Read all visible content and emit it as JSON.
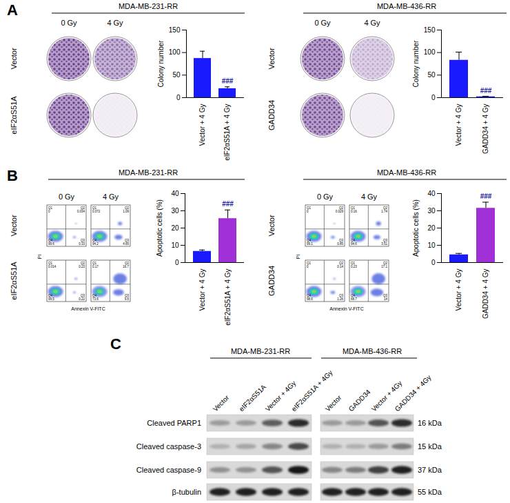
{
  "chart_data": [
    {
      "type": "bar",
      "categories": [
        "Vector + 4 Gy",
        "eIF2αS51A + 4 Gy"
      ],
      "values": [
        87,
        20
      ],
      "errors": [
        16,
        4
      ],
      "colors": [
        "#1a1aff",
        "#1a1aff"
      ],
      "ylabel": "Colony number",
      "ylim": [
        0,
        150
      ],
      "yticks": [
        0,
        50,
        100,
        150
      ],
      "annotations": [
        {
          "category": "eIF2αS51A + 4 Gy",
          "text": "###"
        }
      ]
    },
    {
      "type": "bar",
      "categories": [
        "Vector + 4 Gy",
        "GADD34 + 4 Gy"
      ],
      "values": [
        83,
        2
      ],
      "errors": [
        18,
        1
      ],
      "colors": [
        "#1a1aff",
        "#1a1aff"
      ],
      "ylabel": "Colony number",
      "ylim": [
        0,
        150
      ],
      "yticks": [
        0,
        50,
        100,
        150
      ],
      "annotations": [
        {
          "category": "GADD34 + 4 Gy",
          "text": "###"
        }
      ]
    },
    {
      "type": "bar",
      "categories": [
        "Vector + 4 Gy",
        "eIF2αS51A + 4 Gy"
      ],
      "values": [
        6.5,
        25.5
      ],
      "errors": [
        0.8,
        5
      ],
      "colors": [
        "#1a1aff",
        "#a12fd6"
      ],
      "ylabel": "Apoptotic cells (%)",
      "ylim": [
        0,
        40
      ],
      "yticks": [
        0,
        10,
        20,
        30,
        40
      ],
      "annotations": [
        {
          "category": "eIF2αS51A + 4 Gy",
          "text": "###"
        }
      ]
    },
    {
      "type": "bar",
      "categories": [
        "Vector + 4 Gy",
        "GADD34 + 4 Gy"
      ],
      "values": [
        4.5,
        31.5
      ],
      "errors": [
        0.8,
        3.5
      ],
      "colors": [
        "#1a1aff",
        "#a12fd6"
      ],
      "ylabel": "Apoptotic cells (%)",
      "ylim": [
        0,
        40
      ],
      "yticks": [
        0,
        10,
        20,
        30,
        40
      ],
      "annotations": [
        {
          "category": "GADD34 + 4 Gy",
          "text": "###"
        }
      ]
    }
  ],
  "figure": {
    "A": {
      "label": "A",
      "groups": [
        {
          "cell_line": "MDA-MB-231-RR",
          "doses": [
            "0 Gy",
            "4 Gy"
          ],
          "rows": [
            "Vector",
            "eIF2αS51A"
          ],
          "plate_density": [
            [
              0.85,
              0.6
            ],
            [
              0.85,
              0.03
            ]
          ]
        },
        {
          "cell_line": "MDA-MB-436-RR",
          "doses": [
            "0 Gy",
            "4 Gy"
          ],
          "rows": [
            "Vector",
            "GADD34"
          ],
          "plate_density": [
            [
              0.8,
              0.3
            ],
            [
              0.8,
              0.02
            ]
          ]
        }
      ]
    },
    "B": {
      "label": "B",
      "x_label": "Annexin V-FITC",
      "y_label": "PI",
      "quadrants": [
        "Q1",
        "Q2",
        "Q3",
        "Q4"
      ],
      "groups": [
        {
          "cell_line": "MDA-MB-231-RR",
          "doses": [
            "0 Gy",
            "4 Gy"
          ],
          "rows": [
            "Vector",
            "eIF2αS51A"
          ],
          "flow": [
            [
              [
                0,
                0.034,
                0.33,
                99.6
              ],
              [
                0.072,
                1.09,
                4.65,
                94.2
              ]
            ],
            [
              [
                0.014,
                0.23,
                0.22,
                99.5
              ],
              [
                0.17,
                16.7,
                9.5,
                73.6
              ]
            ]
          ]
        },
        {
          "cell_line": "MDA-MB-436-RR",
          "doses": [
            "0 Gy",
            "4 Gy"
          ],
          "rows": [
            "Vector",
            "GADD34"
          ],
          "flow": [
            [
              [
                0,
                0.029,
                0.85,
                99.1
              ],
              [
                0.16,
                1.74,
                3.51,
                94.6
              ]
            ],
            [
              [
                0,
                0.14,
                1.26,
                98.6
              ],
              [
                0.23,
                17.1,
                14,
                68.7
              ]
            ]
          ]
        }
      ]
    },
    "C": {
      "label": "C",
      "rows": [
        {
          "name": "Cleaved PARP1",
          "size": "16 kDa"
        },
        {
          "name": "Cleaved caspase-3",
          "size": "15 kDa"
        },
        {
          "name": "Cleaved caspase-9",
          "size": "37 kDa"
        },
        {
          "name": "β-tubulin",
          "size": "55 kDa"
        }
      ],
      "groups": [
        {
          "cell_line": "MDA-MB-231-RR",
          "lanes": [
            "Vector",
            "eIF2αS51A",
            "Vector + 4Gy",
            "eIF2αS51A + 4Gy"
          ],
          "intensity": [
            [
              0.3,
              0.3,
              0.6,
              0.85
            ],
            [
              0.2,
              0.25,
              0.4,
              0.7
            ],
            [
              0.35,
              0.35,
              0.65,
              0.95
            ],
            [
              0.9,
              0.9,
              0.9,
              0.9
            ]
          ]
        },
        {
          "cell_line": "MDA-MB-436-RR",
          "lanes": [
            "Vector",
            "GADD34",
            "Vector + 4Gy",
            "GADD34 + 4Gy"
          ],
          "intensity": [
            [
              0.3,
              0.3,
              0.65,
              0.85
            ],
            [
              0.2,
              0.2,
              0.3,
              0.45
            ],
            [
              0.4,
              0.45,
              0.75,
              0.9
            ],
            [
              0.9,
              0.9,
              0.9,
              0.9
            ]
          ]
        }
      ]
    }
  }
}
